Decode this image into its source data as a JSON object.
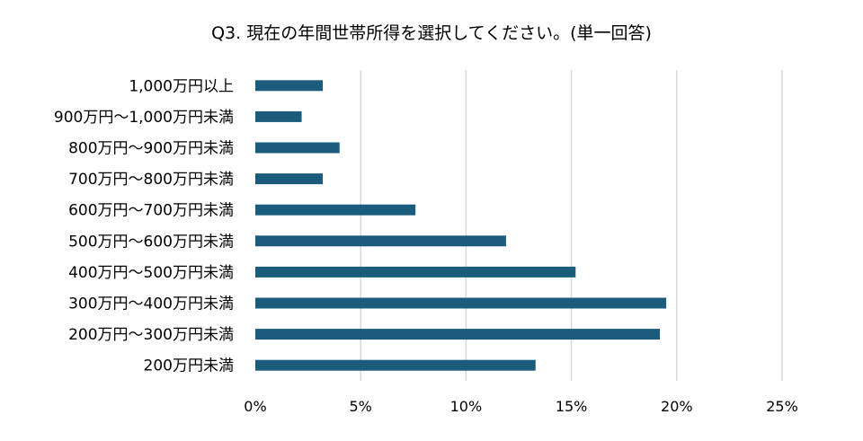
{
  "chart_data": {
    "type": "bar",
    "orientation": "horizontal",
    "title": "Q3. 現在の年間世帯所得を選択してください。(単一回答)",
    "categories": [
      "1,000万円以上",
      "900万円～1,000万円未満",
      "800万円～900万円未満",
      "700万円～800万円未満",
      "600万円～700万円未満",
      "500万円～600万円未満",
      "400万円～500万円未満",
      "300万円～400万円未満",
      "200万円～300万円未満",
      "200万円未満"
    ],
    "values": [
      3.2,
      2.2,
      4.0,
      3.2,
      7.6,
      11.9,
      15.2,
      19.5,
      19.2,
      13.3
    ],
    "xlim": [
      0,
      25
    ],
    "x_ticks": [
      0,
      5,
      10,
      15,
      20,
      25
    ],
    "x_tick_labels": [
      "0%",
      "5%",
      "10%",
      "15%",
      "20%",
      "25%"
    ],
    "grid": true,
    "bar_color": "#1b5c7c",
    "grid_color": "#d9d9d9"
  }
}
